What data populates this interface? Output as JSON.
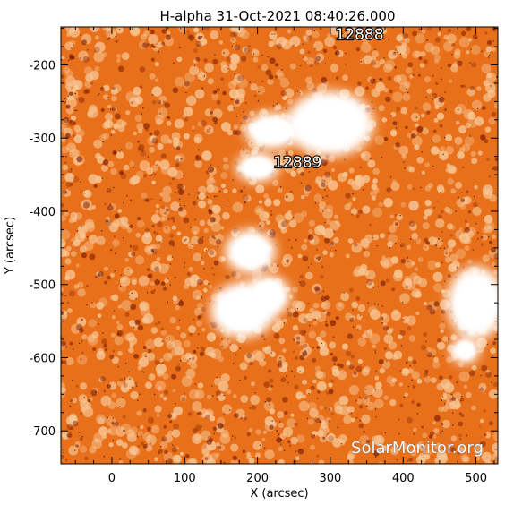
{
  "title": "H-alpha 31-Oct-2021 08:40:26.000",
  "axes": {
    "xlabel": "X (arcsec)",
    "ylabel": "Y (arcsec)",
    "x_range": [
      -70,
      530
    ],
    "y_range": [
      -745,
      -148
    ],
    "x_ticks": [
      0,
      100,
      200,
      300,
      400,
      500
    ],
    "y_ticks": [
      -200,
      -300,
      -400,
      -500,
      -600,
      -700
    ]
  },
  "regions": [
    {
      "number": "12888",
      "x": 340,
      "y": -165
    },
    {
      "number": "12889",
      "x": 255,
      "y": -340
    }
  ],
  "bright_plages": [
    {
      "x": 300,
      "y": -280,
      "rx": 60,
      "ry": 45
    },
    {
      "x": 220,
      "y": -290,
      "rx": 38,
      "ry": 25
    },
    {
      "x": 200,
      "y": -340,
      "rx": 30,
      "ry": 20
    },
    {
      "x": 190,
      "y": -455,
      "rx": 35,
      "ry": 30
    },
    {
      "x": 180,
      "y": -535,
      "rx": 45,
      "ry": 38
    },
    {
      "x": 215,
      "y": -515,
      "rx": 30,
      "ry": 28
    },
    {
      "x": 500,
      "y": -525,
      "rx": 40,
      "ry": 50
    },
    {
      "x": 485,
      "y": -590,
      "rx": 20,
      "ry": 18
    }
  ],
  "watermark": "SolarMonitor.org",
  "colors": {
    "background": "#ffffff",
    "map_base": "#e8701a",
    "map_light": "#f8c898",
    "map_dark": "#7a1a04",
    "axis": "#000000"
  }
}
